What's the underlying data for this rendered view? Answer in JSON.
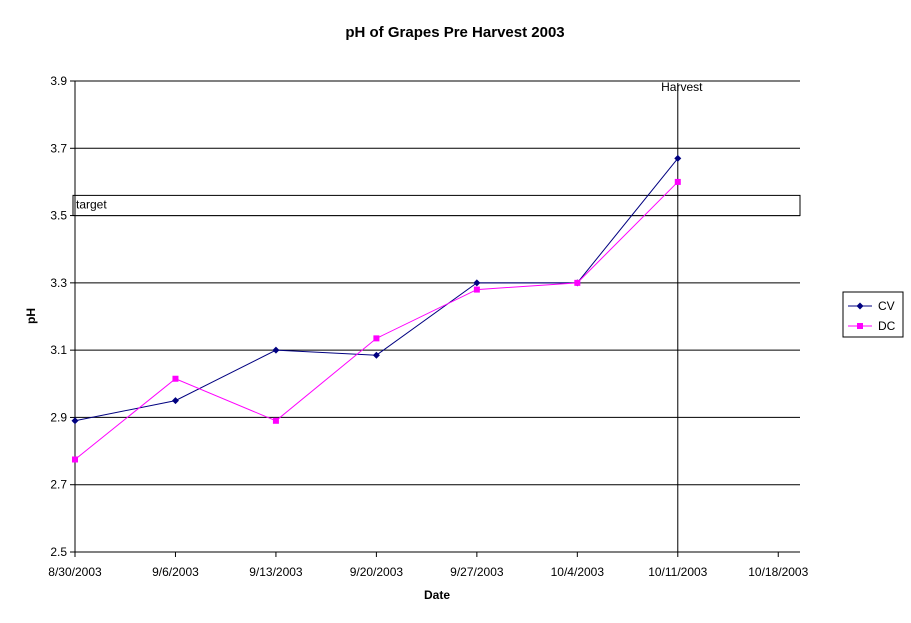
{
  "chart_data": {
    "type": "line",
    "title": "pH of Grapes Pre Harvest 2003",
    "xlabel": "Date",
    "ylabel": "pH",
    "xlim": [
      "8/30/2003",
      "10/18/2003"
    ],
    "ylim": [
      2.5,
      3.9
    ],
    "x_ticks": [
      "8/30/2003",
      "9/6/2003",
      "9/13/2003",
      "9/20/2003",
      "9/27/2003",
      "10/4/2003",
      "10/11/2003",
      "10/18/2003"
    ],
    "y_ticks": [
      2.5,
      2.7,
      2.9,
      3.1,
      3.3,
      3.5,
      3.7,
      3.9
    ],
    "grid": "horizontal",
    "legend": "right",
    "series": [
      {
        "name": "CV",
        "color": "#000080",
        "marker": "diamond",
        "points": [
          {
            "x": "8/30/2003",
            "y": 2.89
          },
          {
            "x": "9/6/2003",
            "y": 2.95
          },
          {
            "x": "9/13/2003",
            "y": 3.1
          },
          {
            "x": "9/20/2003",
            "y": 3.085
          },
          {
            "x": "9/27/2003",
            "y": 3.3
          },
          {
            "x": "10/4/2003",
            "y": 3.3
          },
          {
            "x": "10/11/2003",
            "y": 3.67
          }
        ]
      },
      {
        "name": "DC",
        "color": "#ff00ff",
        "marker": "square",
        "points": [
          {
            "x": "8/30/2003",
            "y": 2.775
          },
          {
            "x": "9/6/2003",
            "y": 3.015
          },
          {
            "x": "9/13/2003",
            "y": 2.89
          },
          {
            "x": "9/20/2003",
            "y": 3.135
          },
          {
            "x": "9/27/2003",
            "y": 3.28
          },
          {
            "x": "10/4/2003",
            "y": 3.3
          },
          {
            "x": "10/11/2003",
            "y": 3.6
          }
        ]
      }
    ],
    "annotations": [
      {
        "type": "band",
        "label": "target",
        "y_range": [
          3.5,
          3.56
        ]
      },
      {
        "type": "vline",
        "label": "Harvest",
        "x": "10/11/2003"
      }
    ]
  }
}
